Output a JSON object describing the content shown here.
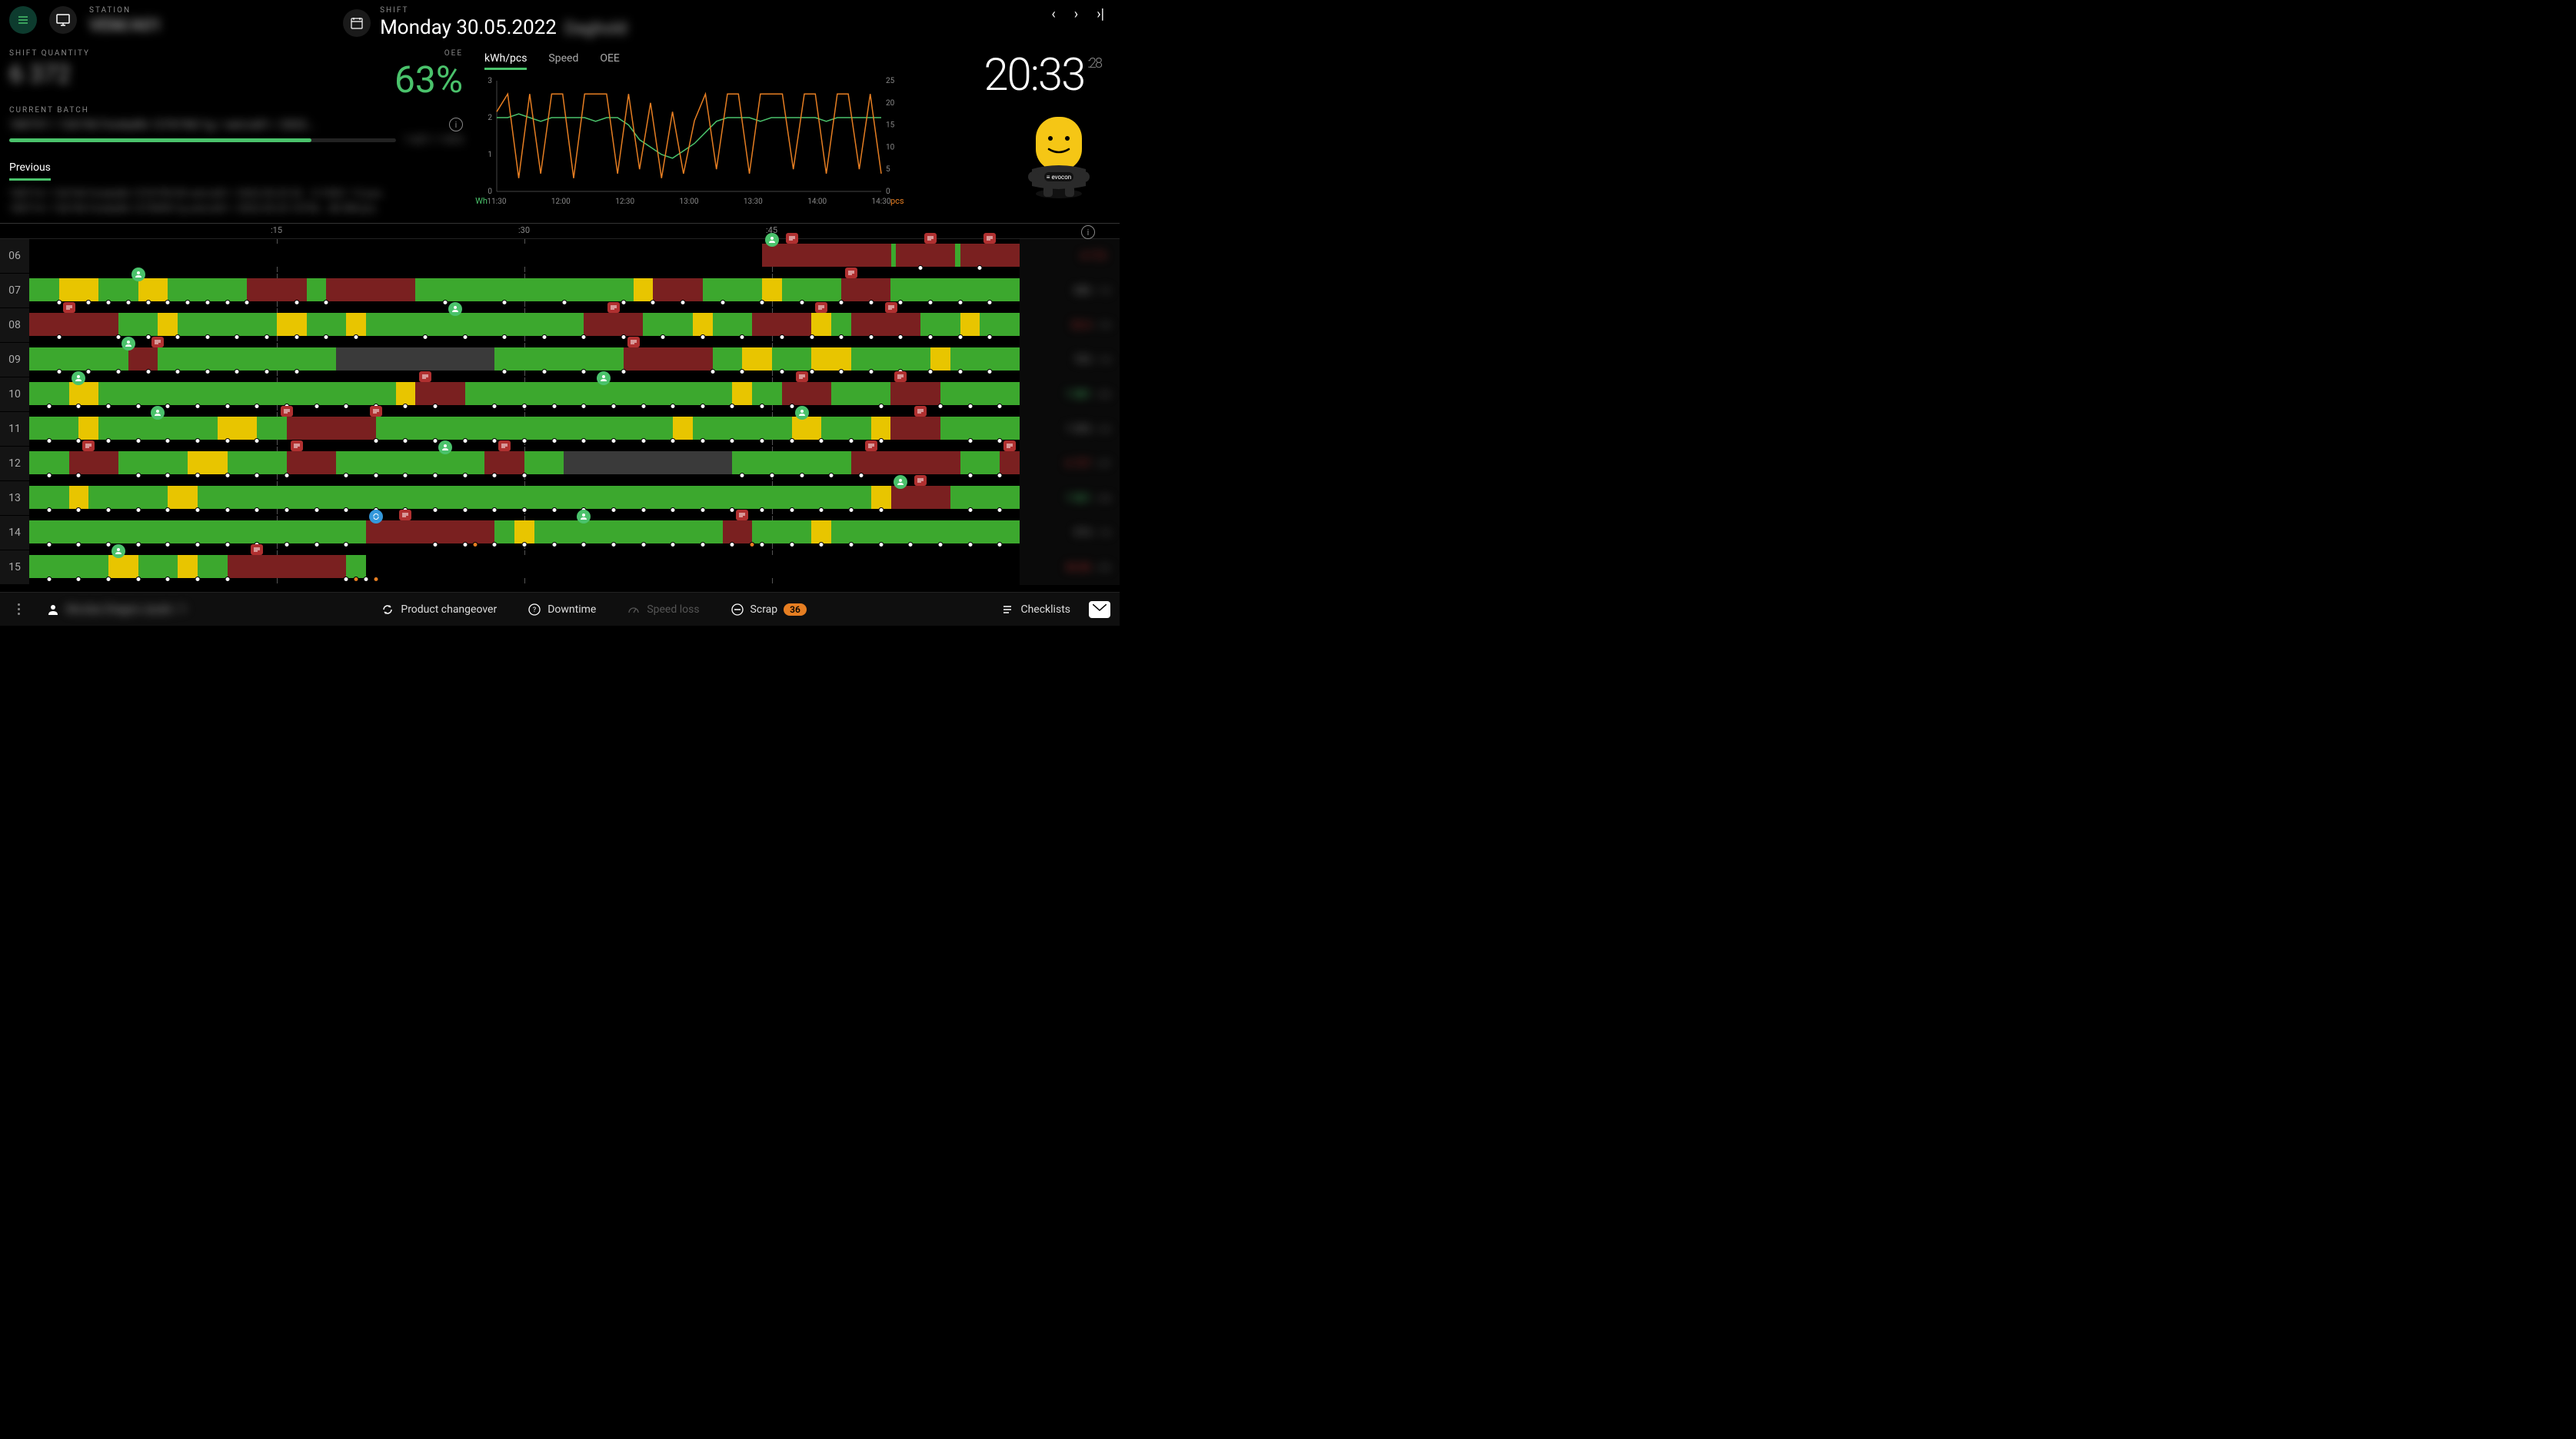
{
  "header": {
    "station_label": "STATION",
    "station_name": "VEM/A01",
    "shift_label": "SHIFT",
    "shift_date": "Monday 30.05.2022",
    "shift_extra": "Daghold"
  },
  "info": {
    "shift_qty_label": "SHIFT QUANTITY",
    "shift_qty_value": "6 372",
    "oee_label": "OEE",
    "oee_value": "63%",
    "batch_label": "CURRENT BATCH",
    "batch_text": "180737 / 126196  Forskalfe  1276740/1g / vem/a01 / 2022...",
    "batch_progress_pct": 78,
    "batch_progress_text": "1 627 / 1 873",
    "tab_previous": "Previous",
    "prev_lines": [
      "180714 / 126196  Forskalfe  1276739/30  vem/a01 / 2022.05.25   33...  0.1939 / 12 pcs",
      "180714 / 126196  Forskalfe  1275699/1g  vem/a01 / 2022.05.25   10754...  80.5M pcs"
    ]
  },
  "chart": {
    "tabs": [
      "kWh/pcs",
      "Speed",
      "OEE"
    ],
    "active_tab": 0,
    "left_axis": {
      "unit": "kWh",
      "min": 0,
      "max": 3,
      "ticks": [
        0,
        1,
        2,
        3
      ],
      "color": "#4ac26b"
    },
    "right_axis": {
      "unit": "pcs",
      "min": 0,
      "max": 25,
      "ticks": [
        0,
        5,
        10,
        15,
        20,
        25
      ],
      "color": "#e67e22"
    },
    "x_labels": [
      "11:30",
      "12:00",
      "12:30",
      "13:00",
      "13:30",
      "14:00",
      "14:30"
    ],
    "series_a": {
      "color": "#4ac26b",
      "stroke_width": 1.5,
      "points": [
        2.0,
        2.0,
        2.1,
        2.0,
        1.9,
        2.0,
        2.0,
        2.0,
        2.0,
        1.9,
        2.0,
        2.0,
        1.8,
        1.4,
        1.2,
        1.0,
        0.9,
        1.1,
        1.3,
        1.6,
        1.9,
        2.0,
        2.0,
        2.0,
        1.9,
        2.0,
        2.0,
        2.0,
        2.0,
        2.0,
        1.9,
        2.0,
        2.0,
        2.0,
        2.0,
        2.0
      ]
    },
    "series_b": {
      "color": "#e67e22",
      "stroke_width": 1.5,
      "points": [
        18,
        22,
        3,
        22,
        4,
        22,
        22,
        3,
        22,
        22,
        22,
        4,
        22,
        5,
        20,
        3,
        18,
        4,
        16,
        22,
        5,
        22,
        22,
        4,
        22,
        22,
        22,
        5,
        22,
        22,
        4,
        22,
        22,
        5,
        22,
        4
      ]
    }
  },
  "clock": {
    "time": "20:33",
    "seconds": ":28"
  },
  "mascot": {
    "brand": "evocon",
    "body_color": "#f5c615",
    "base_color": "#2a2a2a"
  },
  "timeline": {
    "ticks": [
      ":15",
      ":30",
      ":45"
    ],
    "tick_positions_pct": [
      25,
      50,
      75
    ],
    "colors": {
      "green": "#3ca82e",
      "yellow": "#e8c500",
      "red": "#7a2020",
      "gray": "#3a3a3a",
      "empty": "#000"
    },
    "rows": [
      {
        "hour": "06",
        "segments": [
          {
            "c": "empty",
            "w": 74
          },
          {
            "c": "red",
            "w": 13
          },
          {
            "c": "green",
            "w": 0.5
          },
          {
            "c": "red",
            "w": 6
          },
          {
            "c": "green",
            "w": 0.5
          },
          {
            "c": "red",
            "w": 6
          }
        ],
        "dots": [
          90,
          96
        ],
        "markers": [
          {
            "t": "user",
            "x": 75
          },
          {
            "t": "msg",
            "x": 77
          },
          {
            "t": "msg",
            "x": 91
          },
          {
            "t": "msg",
            "x": 97
          }
        ],
        "summary": {
          "val": "4 173",
          "color": "#b03030",
          "sub": ""
        }
      },
      {
        "hour": "07",
        "segments": [
          {
            "c": "green",
            "w": 3
          },
          {
            "c": "yellow",
            "w": 4
          },
          {
            "c": "green",
            "w": 4
          },
          {
            "c": "yellow",
            "w": 3
          },
          {
            "c": "green",
            "w": 8
          },
          {
            "c": "red",
            "w": 6
          },
          {
            "c": "green",
            "w": 2
          },
          {
            "c": "red",
            "w": 9
          },
          {
            "c": "green",
            "w": 22
          },
          {
            "c": "yellow",
            "w": 2
          },
          {
            "c": "red",
            "w": 5
          },
          {
            "c": "green",
            "w": 6
          },
          {
            "c": "yellow",
            "w": 2
          },
          {
            "c": "green",
            "w": 6
          },
          {
            "c": "red",
            "w": 5
          },
          {
            "c": "green",
            "w": 13
          }
        ],
        "dots": [
          3,
          6,
          8,
          10,
          12,
          14,
          16,
          18,
          20,
          22,
          27,
          30,
          42,
          48,
          54,
          60,
          63,
          66,
          70,
          74,
          78,
          82,
          85,
          88,
          91,
          94,
          97
        ],
        "markers": [
          {
            "t": "user",
            "x": 11
          },
          {
            "t": "msg",
            "x": 83
          }
        ],
        "summary": {
          "val": "686",
          "color": "#888",
          "sub": "/ 12"
        }
      },
      {
        "hour": "08",
        "segments": [
          {
            "c": "red",
            "w": 9
          },
          {
            "c": "green",
            "w": 4
          },
          {
            "c": "yellow",
            "w": 2
          },
          {
            "c": "green",
            "w": 10
          },
          {
            "c": "yellow",
            "w": 3
          },
          {
            "c": "green",
            "w": 4
          },
          {
            "c": "yellow",
            "w": 2
          },
          {
            "c": "green",
            "w": 22
          },
          {
            "c": "red",
            "w": 6
          },
          {
            "c": "green",
            "w": 5
          },
          {
            "c": "yellow",
            "w": 2
          },
          {
            "c": "green",
            "w": 4
          },
          {
            "c": "red",
            "w": 6
          },
          {
            "c": "yellow",
            "w": 2
          },
          {
            "c": "green",
            "w": 2
          },
          {
            "c": "red",
            "w": 7
          },
          {
            "c": "green",
            "w": 4
          },
          {
            "c": "yellow",
            "w": 2
          },
          {
            "c": "green",
            "w": 4
          }
        ],
        "dots": [
          3,
          9,
          12,
          15,
          18,
          21,
          24,
          27,
          30,
          33,
          40,
          44,
          48,
          52,
          56,
          60,
          64,
          68,
          72,
          76,
          79,
          82,
          85,
          88,
          91,
          94,
          97
        ],
        "markers": [
          {
            "t": "msg",
            "x": 4
          },
          {
            "t": "user",
            "x": 43
          },
          {
            "t": "msg",
            "x": 59
          },
          {
            "t": "msg",
            "x": 80
          },
          {
            "t": "msg",
            "x": 87
          }
        ],
        "summary": {
          "val": "33.4",
          "color": "#b03030",
          "sub": "/ 19"
        }
      },
      {
        "hour": "09",
        "segments": [
          {
            "c": "green",
            "w": 10
          },
          {
            "c": "red",
            "w": 3
          },
          {
            "c": "green",
            "w": 18
          },
          {
            "c": "gray",
            "w": 16
          },
          {
            "c": "green",
            "w": 13
          },
          {
            "c": "red",
            "w": 9
          },
          {
            "c": "green",
            "w": 3
          },
          {
            "c": "yellow",
            "w": 3
          },
          {
            "c": "green",
            "w": 4
          },
          {
            "c": "yellow",
            "w": 4
          },
          {
            "c": "green",
            "w": 8
          },
          {
            "c": "yellow",
            "w": 2
          },
          {
            "c": "green",
            "w": 7
          }
        ],
        "dots": [
          3,
          6,
          9,
          12,
          15,
          18,
          21,
          24,
          27,
          48,
          52,
          56,
          60,
          69,
          72,
          76,
          79,
          82,
          85,
          88,
          91,
          94,
          97
        ],
        "markers": [
          {
            "t": "user",
            "x": 10
          },
          {
            "t": "msg",
            "x": 13
          },
          {
            "t": "msg",
            "x": 61
          }
        ],
        "summary": {
          "val": "703",
          "color": "#888",
          "sub": "/ 10"
        }
      },
      {
        "hour": "10",
        "segments": [
          {
            "c": "green",
            "w": 4
          },
          {
            "c": "yellow",
            "w": 3
          },
          {
            "c": "green",
            "w": 30
          },
          {
            "c": "yellow",
            "w": 2
          },
          {
            "c": "red",
            "w": 5
          },
          {
            "c": "green",
            "w": 27
          },
          {
            "c": "yellow",
            "w": 2
          },
          {
            "c": "green",
            "w": 3
          },
          {
            "c": "red",
            "w": 5
          },
          {
            "c": "green",
            "w": 6
          },
          {
            "c": "red",
            "w": 5
          },
          {
            "c": "green",
            "w": 8
          }
        ],
        "dots": [
          2,
          5,
          8,
          11,
          14,
          17,
          20,
          23,
          26,
          29,
          32,
          35,
          38,
          41,
          47,
          50,
          53,
          56,
          59,
          62,
          65,
          68,
          71,
          74,
          77,
          86,
          92,
          95,
          98
        ],
        "markers": [
          {
            "t": "user",
            "x": 5
          },
          {
            "t": "msg",
            "x": 40
          },
          {
            "t": "user",
            "x": 58
          },
          {
            "t": "msg",
            "x": 78
          },
          {
            "t": "msg",
            "x": 88
          }
        ],
        "summary": {
          "val": "1 081",
          "color": "#4ac26b",
          "sub": "/ 63"
        }
      },
      {
        "hour": "11",
        "segments": [
          {
            "c": "green",
            "w": 5
          },
          {
            "c": "yellow",
            "w": 2
          },
          {
            "c": "green",
            "w": 12
          },
          {
            "c": "yellow",
            "w": 4
          },
          {
            "c": "green",
            "w": 3
          },
          {
            "c": "red",
            "w": 9
          },
          {
            "c": "green",
            "w": 30
          },
          {
            "c": "yellow",
            "w": 2
          },
          {
            "c": "green",
            "w": 10
          },
          {
            "c": "yellow",
            "w": 3
          },
          {
            "c": "green",
            "w": 5
          },
          {
            "c": "yellow",
            "w": 2
          },
          {
            "c": "red",
            "w": 5
          },
          {
            "c": "green",
            "w": 8
          }
        ],
        "dots": [
          2,
          5,
          8,
          11,
          14,
          17,
          20,
          23,
          35,
          38,
          41,
          44,
          47,
          50,
          53,
          56,
          59,
          62,
          65,
          68,
          71,
          74,
          77,
          80,
          83,
          86,
          95,
          98
        ],
        "markers": [
          {
            "t": "user",
            "x": 13
          },
          {
            "t": "msg",
            "x": 26
          },
          {
            "t": "msg",
            "x": 35
          },
          {
            "t": "user",
            "x": 78
          },
          {
            "t": "msg",
            "x": 90
          }
        ],
        "summary": {
          "val": "1 003",
          "color": "#888",
          "sub": "/ 22"
        }
      },
      {
        "hour": "12",
        "segments": [
          {
            "c": "green",
            "w": 4
          },
          {
            "c": "red",
            "w": 5
          },
          {
            "c": "green",
            "w": 7
          },
          {
            "c": "yellow",
            "w": 4
          },
          {
            "c": "green",
            "w": 6
          },
          {
            "c": "red",
            "w": 5
          },
          {
            "c": "green",
            "w": 15
          },
          {
            "c": "red",
            "w": 4
          },
          {
            "c": "green",
            "w": 4
          },
          {
            "c": "gray",
            "w": 17
          },
          {
            "c": "green",
            "w": 12
          },
          {
            "c": "red",
            "w": 11
          },
          {
            "c": "green",
            "w": 4
          },
          {
            "c": "red",
            "w": 2
          }
        ],
        "dots": [
          2,
          5,
          11,
          14,
          17,
          20,
          23,
          26,
          32,
          35,
          38,
          41,
          44,
          47,
          50,
          72,
          75,
          78,
          81,
          84,
          95,
          98
        ],
        "markers": [
          {
            "t": "msg",
            "x": 6
          },
          {
            "t": "msg",
            "x": 27
          },
          {
            "t": "user",
            "x": 42
          },
          {
            "t": "msg",
            "x": 48
          },
          {
            "t": "msg",
            "x": 85
          },
          {
            "t": "msg",
            "x": 99
          }
        ],
        "summary": {
          "val": "6 727",
          "color": "#b03030",
          "sub": "/ 47"
        }
      },
      {
        "hour": "13",
        "segments": [
          {
            "c": "green",
            "w": 4
          },
          {
            "c": "yellow",
            "w": 2
          },
          {
            "c": "green",
            "w": 8
          },
          {
            "c": "yellow",
            "w": 3
          },
          {
            "c": "green",
            "w": 68
          },
          {
            "c": "yellow",
            "w": 2
          },
          {
            "c": "red",
            "w": 6
          },
          {
            "c": "green",
            "w": 7
          }
        ],
        "dots": [
          2,
          5,
          8,
          11,
          14,
          17,
          20,
          23,
          26,
          29,
          32,
          35,
          38,
          41,
          44,
          47,
          50,
          53,
          56,
          59,
          62,
          65,
          68,
          71,
          74,
          77,
          80,
          83,
          86,
          95,
          98
        ],
        "markers": [
          {
            "t": "user",
            "x": 88
          },
          {
            "t": "msg",
            "x": 90
          }
        ],
        "summary": {
          "val": "1 061",
          "color": "#4ac26b",
          "sub": "/ 64"
        }
      },
      {
        "hour": "14",
        "segments": [
          {
            "c": "green",
            "w": 34
          },
          {
            "c": "red",
            "w": 13
          },
          {
            "c": "green",
            "w": 2
          },
          {
            "c": "yellow",
            "w": 2
          },
          {
            "c": "green",
            "w": 19
          },
          {
            "c": "red",
            "w": 3
          },
          {
            "c": "green",
            "w": 6
          },
          {
            "c": "yellow",
            "w": 2
          },
          {
            "c": "green",
            "w": 19
          }
        ],
        "dots": [
          2,
          5,
          8,
          11,
          14,
          17,
          20,
          23,
          26,
          29,
          32,
          41,
          44,
          47,
          50,
          53,
          56,
          59,
          62,
          65,
          68,
          71,
          74,
          77,
          80,
          83,
          86,
          89,
          92,
          95,
          98
        ],
        "dot_orange": [
          45,
          73
        ],
        "markers": [
          {
            "t": "blue",
            "x": 35
          },
          {
            "t": "msg",
            "x": 38
          },
          {
            "t": "user",
            "x": 56
          },
          {
            "t": "msg",
            "x": 72
          }
        ],
        "summary": {
          "val": "974",
          "color": "#888",
          "sub": "/ 10"
        }
      },
      {
        "hour": "15",
        "segments": [
          {
            "c": "green",
            "w": 8
          },
          {
            "c": "yellow",
            "w": 3
          },
          {
            "c": "green",
            "w": 4
          },
          {
            "c": "yellow",
            "w": 2
          },
          {
            "c": "green",
            "w": 3
          },
          {
            "c": "red",
            "w": 12
          },
          {
            "c": "green",
            "w": 2
          },
          {
            "c": "empty",
            "w": 66
          }
        ],
        "dots": [
          2,
          5,
          8,
          11,
          14,
          17,
          20,
          32,
          34
        ],
        "dot_orange": [
          33,
          35
        ],
        "markers": [
          {
            "t": "user",
            "x": 9
          },
          {
            "t": "msg",
            "x": 23
          }
        ],
        "summary": {
          "val": "46.86",
          "color": "#b03030",
          "sub": "/ 63"
        }
      }
    ]
  },
  "bottom": {
    "user_text": "Nicolas Dragon-Jazak / 1",
    "changeover": "Product changeover",
    "downtime": "Downtime",
    "speedloss": "Speed loss",
    "scrap": "Scrap",
    "scrap_badge": "36",
    "checklists": "Checklists"
  }
}
